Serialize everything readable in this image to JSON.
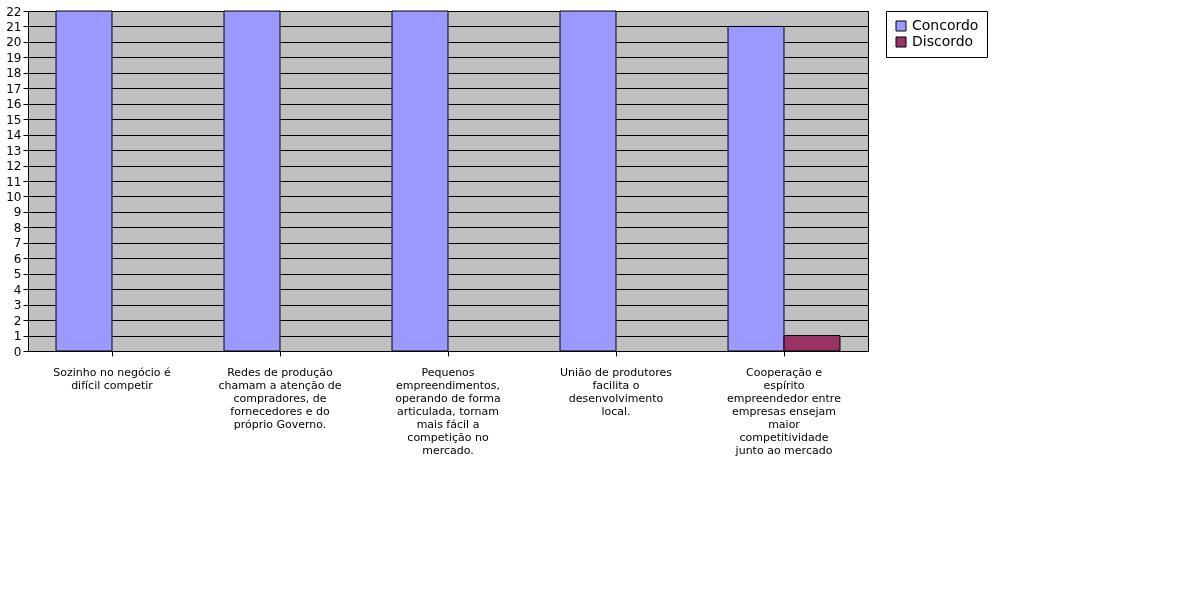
{
  "chart_data": {
    "type": "bar",
    "categories": [
      "Sozinho no negócio é difícil competir",
      "Redes de produção chamam a atenção de compradores, de fornecedores e do próprio Governo.",
      "Pequenos empreendimentos, operando de forma articulada, tornam mais fácil a competição no mercado.",
      "União de produtores facilita o desenvolvimento local.",
      "Cooperação e espírito empreendedor entre empresas ensejam maior competitividade junto ao mercado"
    ],
    "series": [
      {
        "name": "Concordo",
        "color": "#9999ff",
        "values": [
          22,
          22,
          22,
          22,
          21
        ]
      },
      {
        "name": "Discordo",
        "color": "#993366",
        "values": [
          0,
          0,
          0,
          0,
          1
        ]
      }
    ],
    "ylim": [
      0,
      22
    ],
    "yticks": [
      0,
      1,
      2,
      3,
      4,
      5,
      6,
      7,
      8,
      9,
      10,
      11,
      12,
      13,
      14,
      15,
      16,
      17,
      18,
      19,
      20,
      21,
      22
    ],
    "grid": "y",
    "legend": "right"
  }
}
